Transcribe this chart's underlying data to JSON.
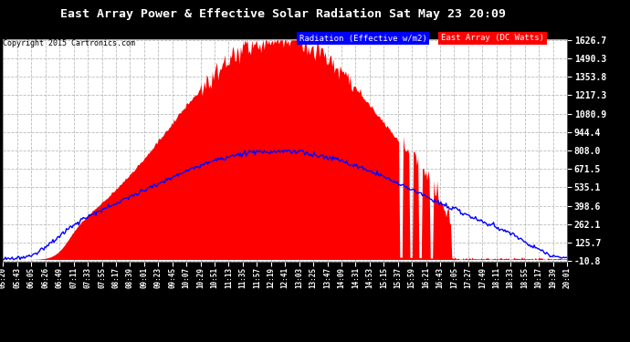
{
  "title": "East Array Power & Effective Solar Radiation Sat May 23 20:09",
  "copyright": "Copyright 2015 Cartronics.com",
  "legend_radiation": "Radiation (Effective w/m2)",
  "legend_east": "East Array (DC Watts)",
  "bg_color": "#000000",
  "plot_bg_color": "#ffffff",
  "grid_color": "#aaaaaa",
  "title_color": "#ffffff",
  "radiation_color": "#0000ff",
  "east_color": "#ff0000",
  "ymin": -10.8,
  "ymax": 1626.7,
  "yticks": [
    1626.7,
    1490.3,
    1353.8,
    1217.3,
    1080.9,
    944.4,
    808.0,
    671.5,
    535.1,
    398.6,
    262.1,
    125.7,
    -10.8
  ],
  "xtick_labels": [
    "05:20",
    "05:43",
    "06:05",
    "06:26",
    "06:49",
    "07:11",
    "07:33",
    "07:55",
    "08:17",
    "08:39",
    "09:01",
    "09:23",
    "09:45",
    "10:07",
    "10:29",
    "10:51",
    "11:13",
    "11:35",
    "11:57",
    "12:19",
    "12:41",
    "13:03",
    "13:25",
    "13:47",
    "14:09",
    "14:31",
    "14:53",
    "15:15",
    "15:37",
    "15:59",
    "16:21",
    "16:43",
    "17:05",
    "17:27",
    "17:49",
    "18:11",
    "18:33",
    "18:55",
    "19:17",
    "19:39",
    "20:01"
  ],
  "radiation_peak": 808.0,
  "east_peak": 1626.7,
  "n_points": 500
}
